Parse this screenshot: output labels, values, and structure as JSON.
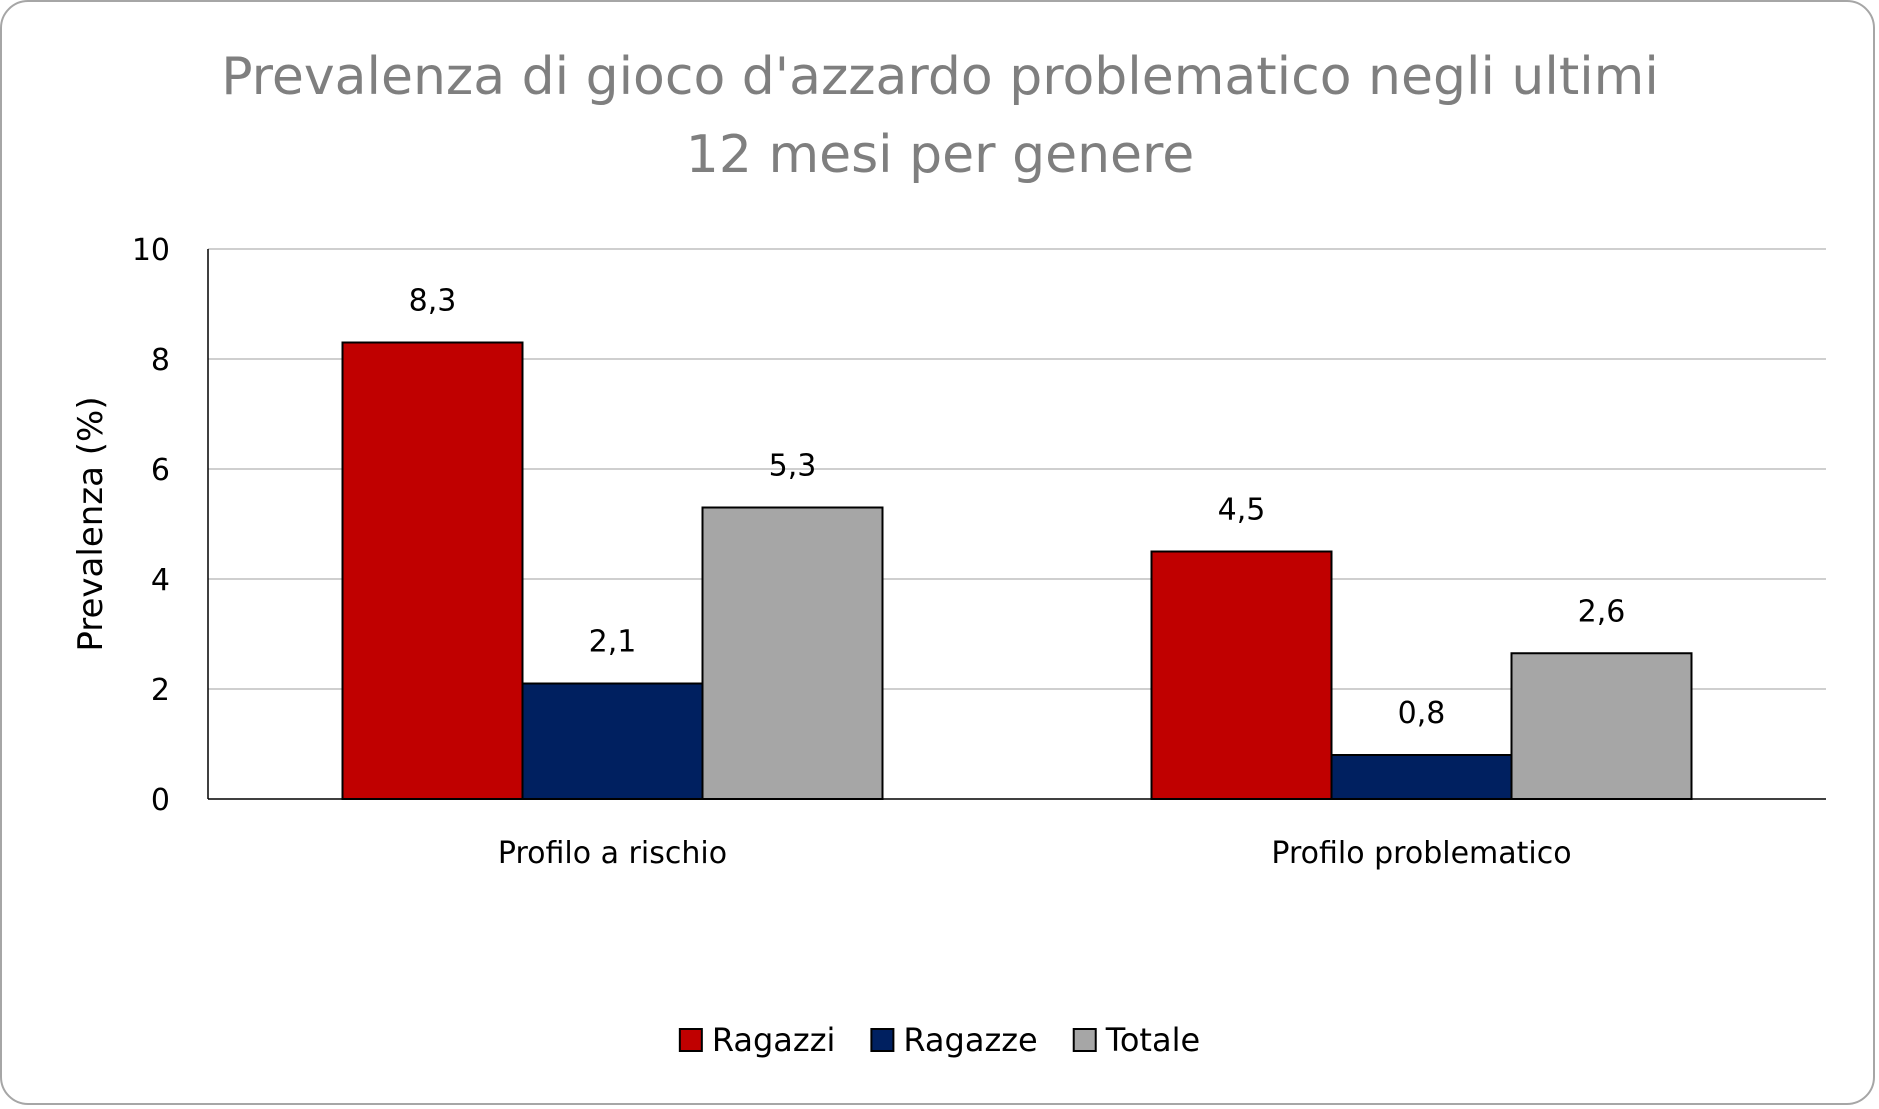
{
  "chart_data": {
    "type": "bar",
    "title_lines": [
      "Prevalenza di gioco d'azzardo problematico negli ultimi",
      "12 mesi per genere"
    ],
    "ylabel": "Prevalenza (%)",
    "xlabel": "",
    "ylim": [
      0,
      10
    ],
    "yticks": [
      0,
      2,
      4,
      6,
      8,
      10
    ],
    "grid": true,
    "legend_position": "bottom",
    "categories": [
      "Profilo a rischio",
      "Profilo problematico"
    ],
    "series": [
      {
        "name": "Ragazzi",
        "color": "#c00000",
        "values": [
          8.3,
          4.5
        ],
        "labels": [
          "8,3",
          "4,5"
        ]
      },
      {
        "name": "Ragazze",
        "color": "#002060",
        "values": [
          2.1,
          0.8
        ],
        "labels": [
          "2,1",
          "0,8"
        ]
      },
      {
        "name": "Totale",
        "color": "#a6a6a6",
        "values": [
          5.3,
          2.65
        ],
        "labels": [
          "5,3",
          "2,6"
        ]
      }
    ]
  }
}
